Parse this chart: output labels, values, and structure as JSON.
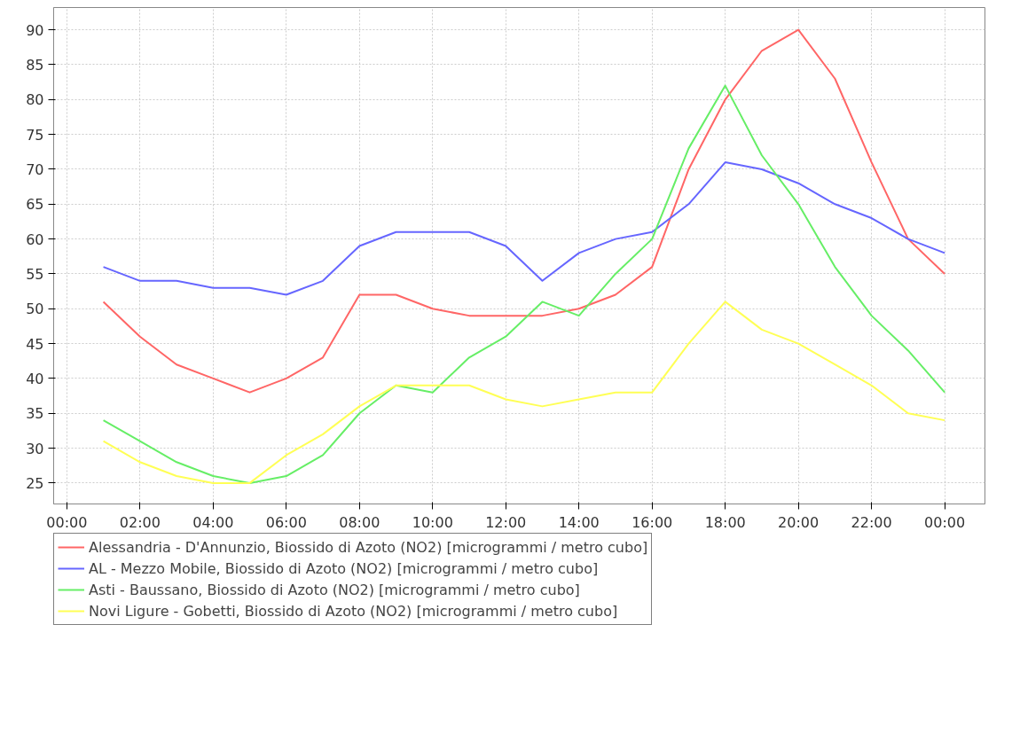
{
  "chart_data": {
    "type": "line",
    "x": [
      1,
      2,
      3,
      4,
      5,
      6,
      7,
      8,
      9,
      10,
      11,
      12,
      13,
      14,
      15,
      16,
      17,
      18,
      19,
      20,
      21,
      22,
      23,
      24
    ],
    "series": [
      {
        "name": "Alessandria - D'Annunzio, Biossido di Azoto (NO2) [microgrammi / metro cubo]",
        "color": "#ff6666",
        "values": [
          51,
          46,
          42,
          40,
          38,
          40,
          43,
          52,
          52,
          50,
          49,
          49,
          49,
          50,
          52,
          56,
          70,
          80,
          87,
          90,
          83,
          71,
          60,
          55
        ]
      },
      {
        "name": "AL - Mezzo Mobile, Biossido di Azoto (NO2) [microgrammi / metro cubo]",
        "color": "#6666ff",
        "values": [
          56,
          54,
          54,
          53,
          53,
          52,
          54,
          59,
          61,
          61,
          61,
          59,
          54,
          58,
          60,
          61,
          65,
          71,
          70,
          68,
          65,
          63,
          60,
          58
        ]
      },
      {
        "name": "Asti - Baussano, Biossido di Azoto (NO2) [microgrammi / metro cubo]",
        "color": "#66ee66",
        "values": [
          34,
          31,
          28,
          26,
          25,
          26,
          29,
          35,
          39,
          38,
          43,
          46,
          51,
          49,
          55,
          60,
          73,
          82,
          72,
          65,
          56,
          49,
          44,
          38
        ]
      },
      {
        "name": "Novi Ligure - Gobetti, Biossido di Azoto (NO2) [microgrammi / metro cubo]",
        "color": "#ffff55",
        "values": [
          31,
          28,
          26,
          25,
          25,
          29,
          32,
          36,
          39,
          39,
          39,
          37,
          36,
          37,
          38,
          38,
          45,
          51,
          47,
          45,
          42,
          39,
          35,
          34
        ]
      }
    ],
    "xlim": [
      -0.36,
      25.1
    ],
    "xticks": [
      {
        "value": 0,
        "label": "00:00"
      },
      {
        "value": 2,
        "label": "02:00"
      },
      {
        "value": 4,
        "label": "04:00"
      },
      {
        "value": 6,
        "label": "06:00"
      },
      {
        "value": 8,
        "label": "08:00"
      },
      {
        "value": 10,
        "label": "10:00"
      },
      {
        "value": 12,
        "label": "12:00"
      },
      {
        "value": 14,
        "label": "14:00"
      },
      {
        "value": 16,
        "label": "16:00"
      },
      {
        "value": 18,
        "label": "18:00"
      },
      {
        "value": 20,
        "label": "20:00"
      },
      {
        "value": 22,
        "label": "22:00"
      },
      {
        "value": 24,
        "label": "00:00"
      }
    ],
    "ylim": [
      22,
      93.2
    ],
    "yticks": [
      25,
      30,
      35,
      40,
      45,
      50,
      55,
      60,
      65,
      70,
      75,
      80,
      85,
      90
    ],
    "grid": true,
    "legend": "bottom",
    "marker": "none",
    "line_style": "solid"
  }
}
